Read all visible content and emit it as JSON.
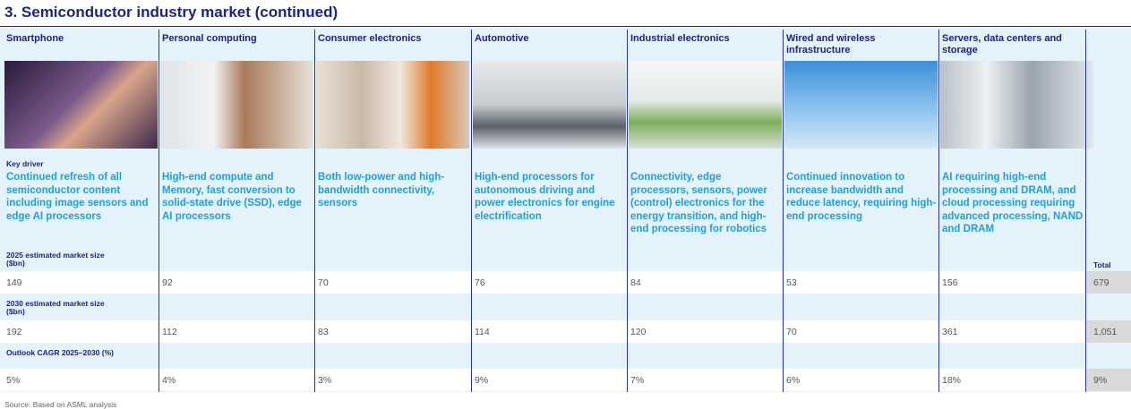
{
  "title": "3. Semiconductor industry market (continued)",
  "labels": {
    "key_driver": "Key driver",
    "market_2025": "2025 estimated market size ($bn)",
    "market_2030": "2030 estimated market size ($bn)",
    "cagr": "Outlook CAGR 2025–2030 (%)"
  },
  "columns": [
    {
      "header": "Smartphone",
      "key_driver": "Continued refresh of all semiconductor content including image sensors and edge AI processors",
      "market_2025": "149",
      "market_2030": "192",
      "cagr": "5%"
    },
    {
      "header": "Personal computing",
      "key_driver": "High-end compute and Memory, fast conversion to solid-state drive (SSD), edge AI processors",
      "market_2025": "92",
      "market_2030": "112",
      "cagr": "4%"
    },
    {
      "header": "Consumer electronics",
      "key_driver": "Both low-power and high-bandwidth connectivity, sensors",
      "market_2025": "70",
      "market_2030": "83",
      "cagr": "3%"
    },
    {
      "header": "Automotive",
      "key_driver": "High-end processors for autonomous driving and power electronics for engine electrification",
      "market_2025": "76",
      "market_2030": "114",
      "cagr": "9%"
    },
    {
      "header": "Industrial electronics",
      "key_driver": "Connectivity, edge processors, sensors, power (control) electronics for the energy transition, and high-end processing for robotics",
      "market_2025": "84",
      "market_2030": "120",
      "cagr": "7%"
    },
    {
      "header": "Wired and wireless infrastructure",
      "key_driver": "Continued innovation to increase bandwidth and reduce latency, requiring high-end processing",
      "market_2025": "53",
      "market_2030": "70",
      "cagr": "6%"
    },
    {
      "header": "Servers, data centers and storage",
      "key_driver": "AI requiring high-end processing and DRAM, and cloud processing requiring advanced processing, NAND and DRAM",
      "market_2025": "156",
      "market_2030": "361",
      "cagr": "18%"
    }
  ],
  "total": {
    "header": "Total",
    "market_2025": "679",
    "market_2030": "1,051",
    "cagr": "9%"
  },
  "source": "Source: Based on ASML analysis"
}
